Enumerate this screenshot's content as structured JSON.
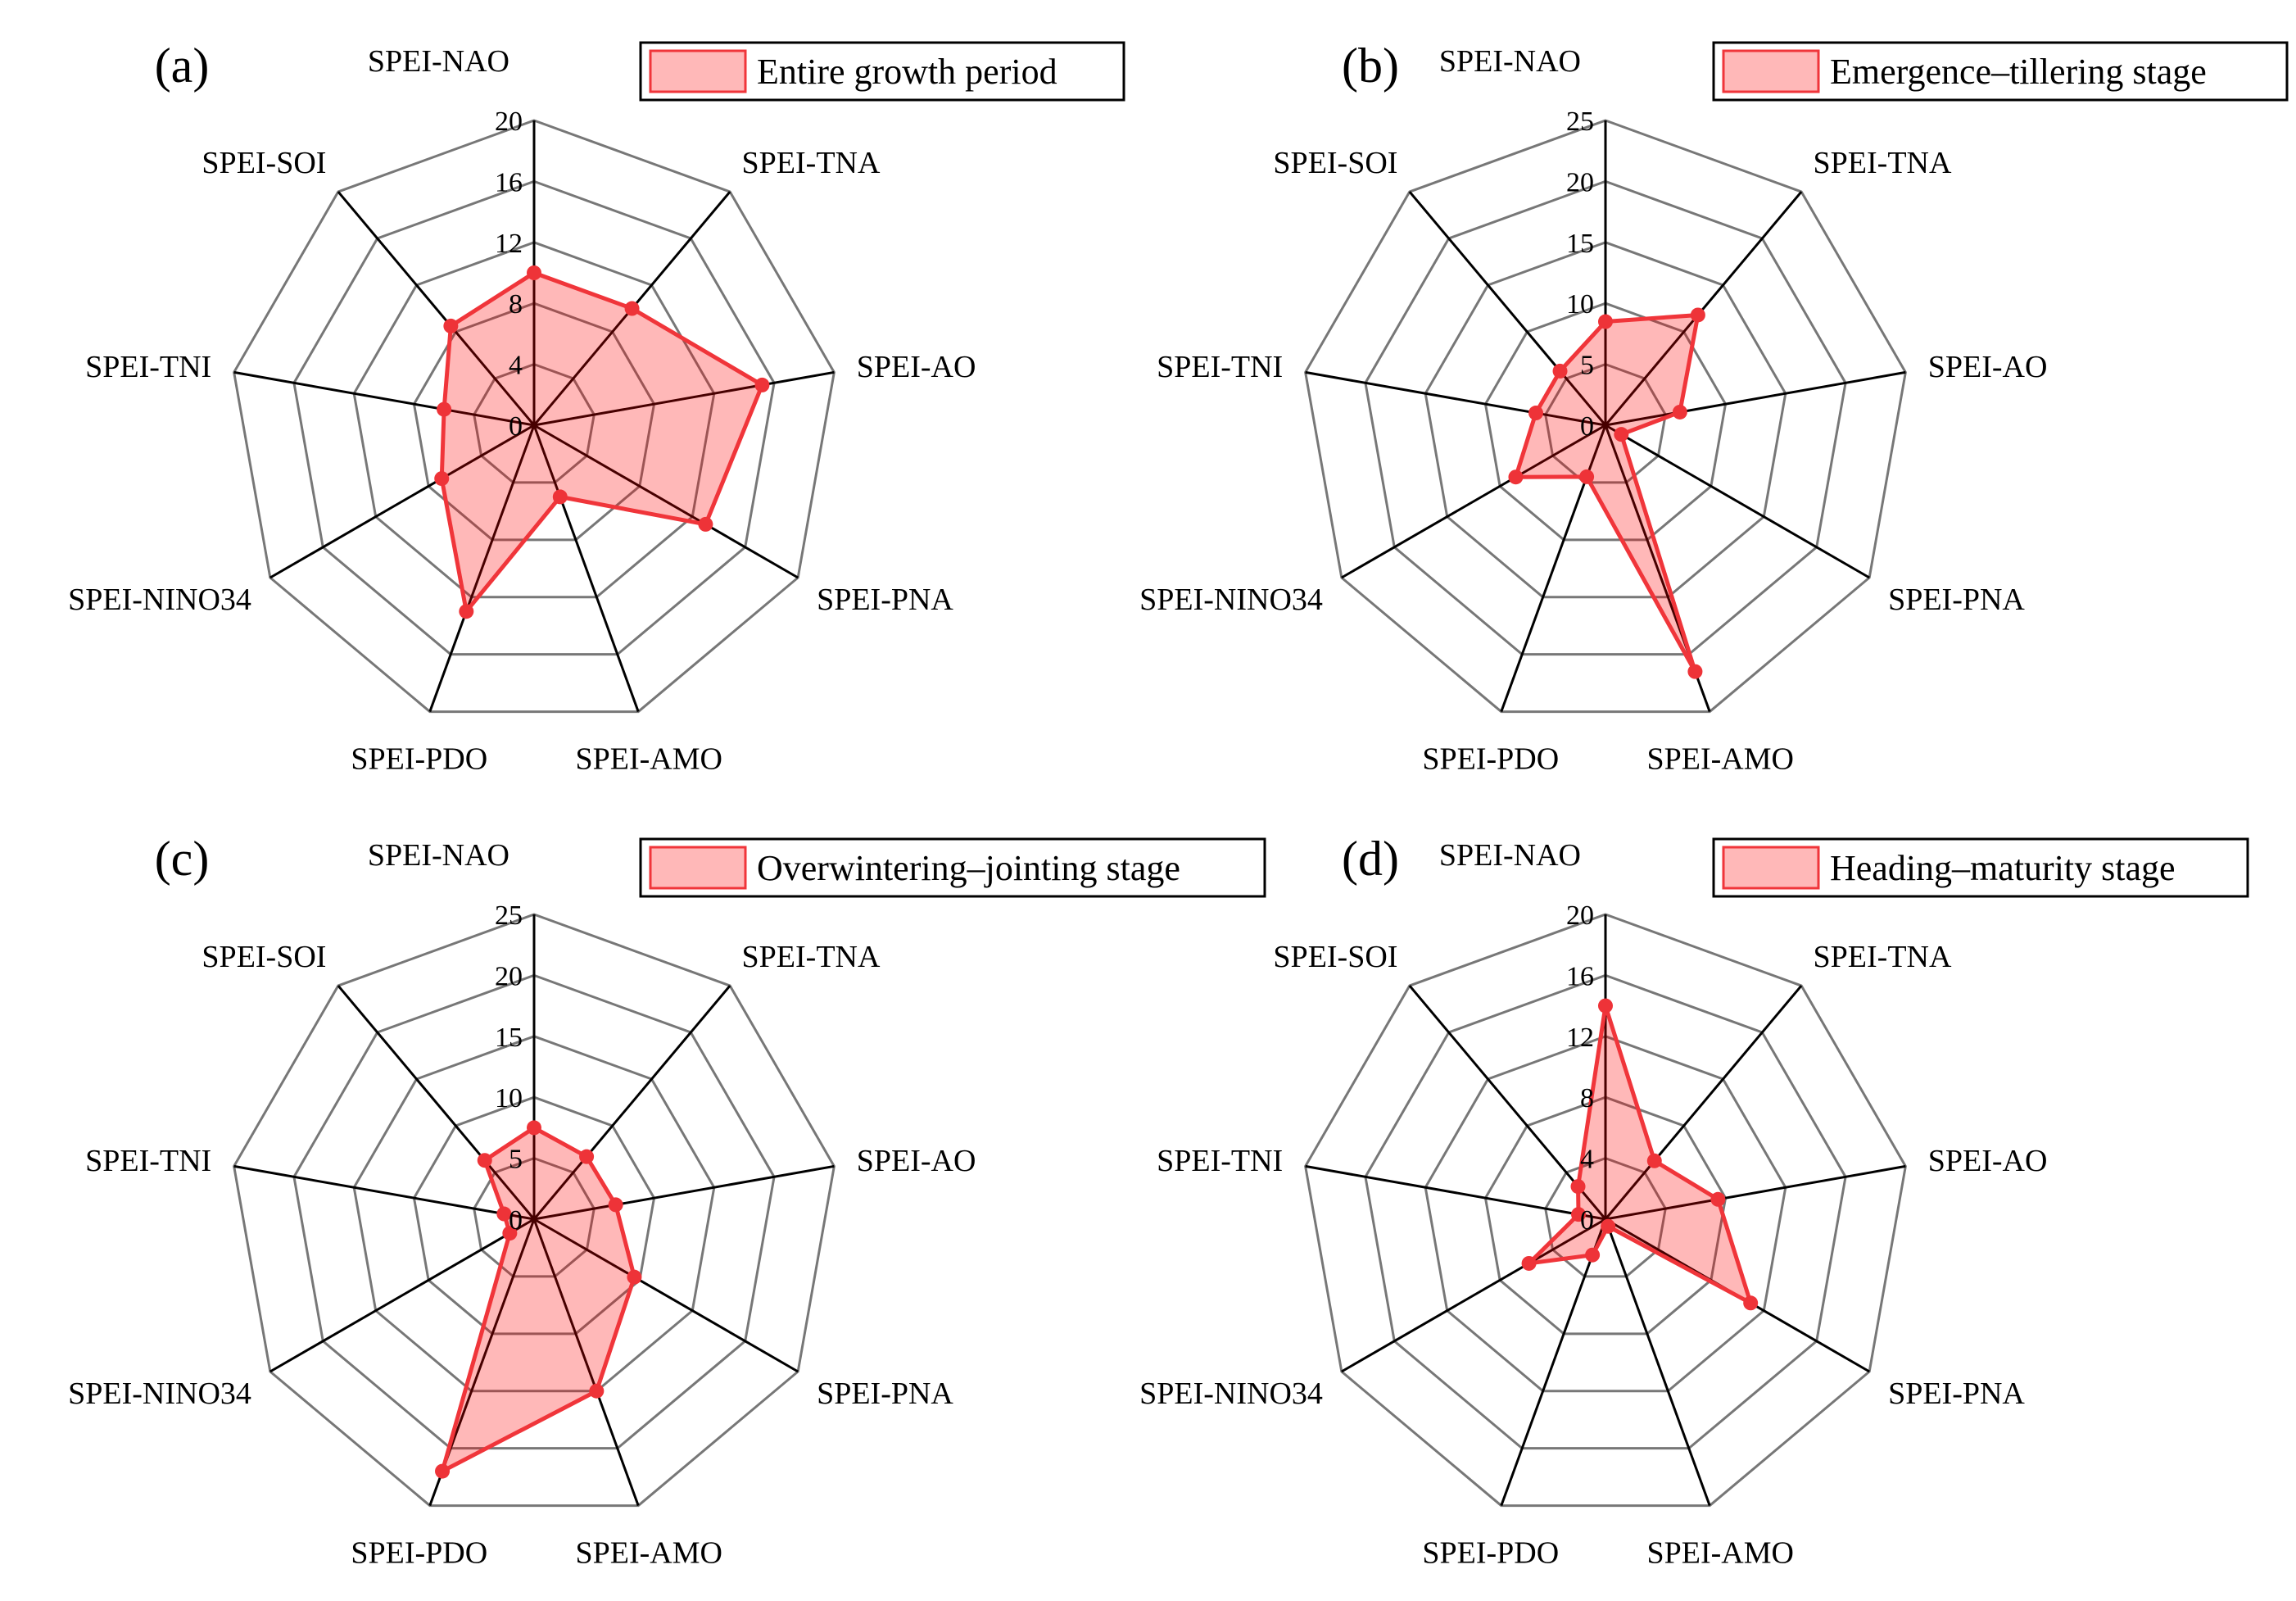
{
  "colors": {
    "fill": "#ff0000",
    "fill_opacity": 0.28,
    "line": "#f0353a",
    "marker": "#ee3338",
    "grid": "#777777",
    "spoke": "#000000"
  },
  "chart_data": [
    {
      "type": "radar",
      "panel": "(a)",
      "legend": "Entire growth period",
      "axes": [
        "SPEI-NAO",
        "SPEI-TNA",
        "SPEI-AO",
        "SPEI-PNA",
        "SPEI-AMO",
        "SPEI-PDO",
        "SPEI-NINO34",
        "SPEI-TNI",
        "SPEI-SOI"
      ],
      "values": [
        10,
        10,
        15.2,
        13,
        5,
        13,
        7,
        6,
        8.5
      ],
      "rmax": 20,
      "ticks": [
        0,
        4,
        8,
        12,
        16,
        20
      ],
      "tick_labels": [
        "0",
        "4",
        "8",
        "12",
        "16",
        "20"
      ]
    },
    {
      "type": "radar",
      "panel": "(b)",
      "legend": "Emergence–tillering stage",
      "axes": [
        "SPEI-NAO",
        "SPEI-TNA",
        "SPEI-AO",
        "SPEI-PNA",
        "SPEI-AMO",
        "SPEI-PDO",
        "SPEI-NINO34",
        "SPEI-TNI",
        "SPEI-SOI"
      ],
      "values": [
        8.5,
        11.8,
        6.2,
        1.5,
        21.5,
        4.5,
        8.5,
        5.8,
        5.8
      ],
      "rmax": 25,
      "ticks": [
        0,
        5,
        10,
        15,
        20,
        25
      ],
      "tick_labels": [
        "0",
        "5",
        "10",
        "15",
        "20",
        "25"
      ]
    },
    {
      "type": "radar",
      "panel": "(c)",
      "legend": "Overwintering–jointing stage",
      "axes": [
        "SPEI-NAO",
        "SPEI-TNA",
        "SPEI-AO",
        "SPEI-PNA",
        "SPEI-AMO",
        "SPEI-PDO",
        "SPEI-NINO34",
        "SPEI-TNI",
        "SPEI-SOI"
      ],
      "values": [
        7.5,
        6.7,
        6.8,
        9.5,
        15,
        22,
        2.3,
        2.5,
        6.3
      ],
      "rmax": 25,
      "ticks": [
        0,
        5,
        10,
        15,
        20,
        25
      ],
      "tick_labels": [
        "0",
        "5",
        "10",
        "15",
        "20",
        "25"
      ]
    },
    {
      "type": "radar",
      "panel": "(d)",
      "legend": "Heading–maturity stage",
      "axes": [
        "SPEI-NAO",
        "SPEI-TNA",
        "SPEI-AO",
        "SPEI-PNA",
        "SPEI-AMO",
        "SPEI-PDO",
        "SPEI-NINO34",
        "SPEI-TNI",
        "SPEI-SOI"
      ],
      "values": [
        14,
        5,
        7.5,
        11,
        0.5,
        2.5,
        5.8,
        1.8,
        2.8
      ],
      "rmax": 20,
      "ticks": [
        0,
        4,
        8,
        12,
        16,
        20
      ],
      "tick_labels": [
        "0",
        "4",
        "8",
        "12",
        "16",
        "20"
      ]
    }
  ]
}
